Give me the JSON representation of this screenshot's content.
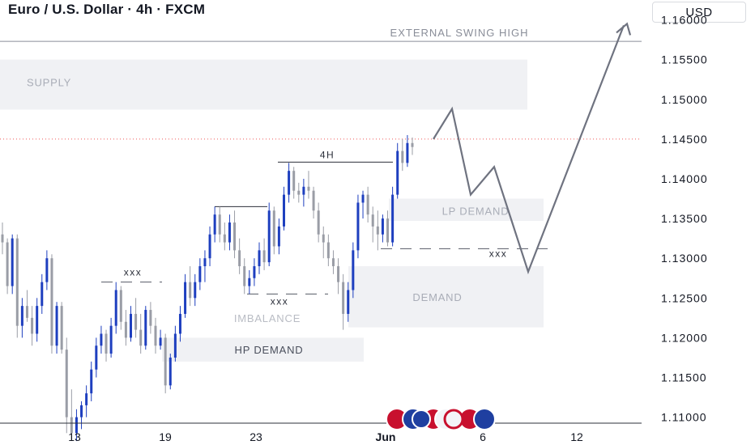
{
  "header": {
    "title": "Euro / U.S. Dollar · 4h · FXCM",
    "currency": "USD"
  },
  "chart_data": {
    "type": "candlestick",
    "symbol": "EURUSD",
    "timeframe": "4h",
    "source": "FXCM",
    "y_axis": {
      "ylim": [
        1.1065,
        1.1625
      ],
      "ticks": [
        "1.16000",
        "1.15500",
        "1.15000",
        "1.14500",
        "1.14000",
        "1.13500",
        "1.13000",
        "1.12500",
        "1.12000",
        "1.11500",
        "1.11000"
      ]
    },
    "x_axis": {
      "ticks": [
        "13",
        "19",
        "23",
        "Jun",
        "6",
        "12"
      ]
    },
    "current_price_line": 1.145,
    "levels": [
      {
        "label": "EXTERNAL SWING HIGH",
        "price": 1.1573
      }
    ],
    "zones": [
      {
        "label": "SUPPLY",
        "top": 1.155,
        "bottom": 1.1487
      },
      {
        "label": "LP DEMAND",
        "top": 1.1375,
        "bottom": 1.1347
      },
      {
        "label": "DEMAND",
        "top": 1.129,
        "bottom": 1.1213
      },
      {
        "label": "HP DEMAND",
        "top": 1.12,
        "bottom": 1.117
      }
    ],
    "annotations": [
      {
        "label": "4H",
        "price": 1.1421
      },
      {
        "label": "xxx",
        "price": 1.127
      },
      {
        "label": "xxx",
        "price": 1.1255
      },
      {
        "label": "xxx",
        "price": 1.1312
      },
      {
        "label": "IMBALANCE",
        "price": 1.1225
      }
    ],
    "projection": [
      1.145,
      1.1488,
      1.138,
      1.1415,
      1.1283,
      1.1593
    ],
    "candles": [
      [
        1.133,
        1.1345,
        1.1305,
        1.132
      ],
      [
        1.132,
        1.1325,
        1.1255,
        1.1265
      ],
      [
        1.1265,
        1.133,
        1.1255,
        1.1325
      ],
      [
        1.1325,
        1.133,
        1.12,
        1.1215
      ],
      [
        1.1215,
        1.125,
        1.12,
        1.124
      ],
      [
        1.124,
        1.126,
        1.122,
        1.1225
      ],
      [
        1.1225,
        1.124,
        1.119,
        1.1205
      ],
      [
        1.1205,
        1.125,
        1.1195,
        1.124
      ],
      [
        1.124,
        1.128,
        1.123,
        1.127
      ],
      [
        1.127,
        1.131,
        1.126,
        1.13
      ],
      [
        1.13,
        1.1305,
        1.118,
        1.119
      ],
      [
        1.119,
        1.1245,
        1.118,
        1.124
      ],
      [
        1.124,
        1.1245,
        1.118,
        1.1185
      ],
      [
        1.1185,
        1.12,
        1.108,
        1.11
      ],
      [
        1.11,
        1.1135,
        1.107,
        1.108
      ],
      [
        1.108,
        1.111,
        1.107,
        1.11
      ],
      [
        1.11,
        1.112,
        1.1085,
        1.1115
      ],
      [
        1.1115,
        1.114,
        1.11,
        1.113
      ],
      [
        1.113,
        1.117,
        1.112,
        1.116
      ],
      [
        1.116,
        1.12,
        1.115,
        1.119
      ],
      [
        1.119,
        1.1215,
        1.118,
        1.1205
      ],
      [
        1.1205,
        1.121,
        1.117,
        1.118
      ],
      [
        1.118,
        1.1225,
        1.1175,
        1.1215
      ],
      [
        1.1215,
        1.127,
        1.1205,
        1.126
      ],
      [
        1.126,
        1.1265,
        1.121,
        1.122
      ],
      [
        1.122,
        1.1235,
        1.119,
        1.12
      ],
      [
        1.12,
        1.124,
        1.1195,
        1.123
      ],
      [
        1.123,
        1.125,
        1.12,
        1.121
      ],
      [
        1.121,
        1.123,
        1.118,
        1.119
      ],
      [
        1.119,
        1.124,
        1.1185,
        1.1235
      ],
      [
        1.1235,
        1.1245,
        1.1205,
        1.1215
      ],
      [
        1.1215,
        1.1225,
        1.118,
        1.119
      ],
      [
        1.119,
        1.121,
        1.1185,
        1.12
      ],
      [
        1.12,
        1.1205,
        1.113,
        1.114
      ],
      [
        1.114,
        1.118,
        1.1135,
        1.1175
      ],
      [
        1.1175,
        1.1215,
        1.117,
        1.1205
      ],
      [
        1.1205,
        1.124,
        1.1195,
        1.123
      ],
      [
        1.123,
        1.128,
        1.1225,
        1.127
      ],
      [
        1.127,
        1.129,
        1.124,
        1.125
      ],
      [
        1.125,
        1.128,
        1.124,
        1.127
      ],
      [
        1.127,
        1.13,
        1.126,
        1.129
      ],
      [
        1.129,
        1.131,
        1.127,
        1.13
      ],
      [
        1.13,
        1.134,
        1.129,
        1.133
      ],
      [
        1.133,
        1.1365,
        1.132,
        1.1355
      ],
      [
        1.1355,
        1.1365,
        1.132,
        1.133
      ],
      [
        1.133,
        1.1345,
        1.131,
        1.132
      ],
      [
        1.132,
        1.1355,
        1.131,
        1.1345
      ],
      [
        1.1345,
        1.136,
        1.13,
        1.131
      ],
      [
        1.131,
        1.1325,
        1.128,
        1.129
      ],
      [
        1.129,
        1.13,
        1.1255,
        1.1265
      ],
      [
        1.1265,
        1.1285,
        1.1255,
        1.1275
      ],
      [
        1.1275,
        1.13,
        1.1265,
        1.129
      ],
      [
        1.129,
        1.132,
        1.128,
        1.131
      ],
      [
        1.131,
        1.1325,
        1.1285,
        1.1295
      ],
      [
        1.1295,
        1.137,
        1.129,
        1.136
      ],
      [
        1.136,
        1.1365,
        1.1305,
        1.1315
      ],
      [
        1.1315,
        1.135,
        1.1305,
        1.134
      ],
      [
        1.134,
        1.139,
        1.1335,
        1.138
      ],
      [
        1.138,
        1.142,
        1.137,
        1.141
      ],
      [
        1.141,
        1.1415,
        1.1375,
        1.1385
      ],
      [
        1.1385,
        1.1395,
        1.137,
        1.138
      ],
      [
        1.138,
        1.14,
        1.1365,
        1.139
      ],
      [
        1.139,
        1.141,
        1.1375,
        1.1385
      ],
      [
        1.1385,
        1.139,
        1.135,
        1.136
      ],
      [
        1.136,
        1.137,
        1.132,
        1.133
      ],
      [
        1.133,
        1.134,
        1.13,
        1.132
      ],
      [
        1.132,
        1.133,
        1.129,
        1.13
      ],
      [
        1.13,
        1.131,
        1.128,
        1.129
      ],
      [
        1.129,
        1.13,
        1.1255,
        1.127
      ],
      [
        1.127,
        1.128,
        1.121,
        1.123
      ],
      [
        1.123,
        1.127,
        1.122,
        1.126
      ],
      [
        1.126,
        1.132,
        1.125,
        1.131
      ],
      [
        1.131,
        1.138,
        1.13,
        1.137
      ],
      [
        1.137,
        1.1385,
        1.135,
        1.138
      ],
      [
        1.138,
        1.139,
        1.1345,
        1.1355
      ],
      [
        1.1355,
        1.1365,
        1.132,
        1.134
      ],
      [
        1.134,
        1.136,
        1.131,
        1.133
      ],
      [
        1.133,
        1.1355,
        1.132,
        1.135
      ],
      [
        1.135,
        1.136,
        1.1315,
        1.132
      ],
      [
        1.132,
        1.139,
        1.1315,
        1.138
      ],
      [
        1.138,
        1.1445,
        1.1375,
        1.1435
      ],
      [
        1.1435,
        1.145,
        1.141,
        1.142
      ],
      [
        1.142,
        1.1455,
        1.1415,
        1.1445
      ],
      [
        1.1445,
        1.1452,
        1.143,
        1.144
      ]
    ]
  }
}
